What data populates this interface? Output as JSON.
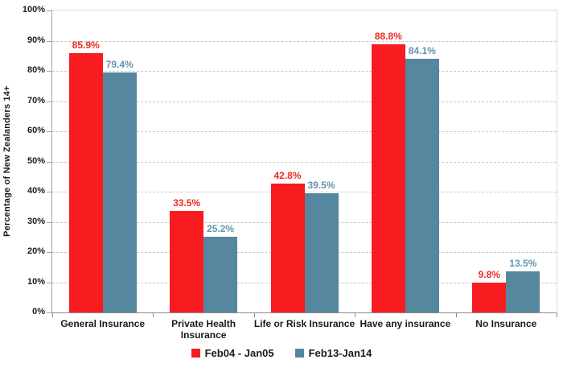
{
  "chart_data": {
    "type": "bar",
    "ylabel": "Percentage of New Zealanders 14+",
    "categories": [
      "General Insurance",
      "Private Health\nInsurance",
      "Life or Risk Insurance",
      "Have any insurance",
      "No Insurance"
    ],
    "series": [
      {
        "name": "Feb04 - Jan05",
        "color": "#f81c20",
        "label_color": "#ef2a24",
        "values": [
          85.9,
          33.5,
          42.8,
          88.8,
          9.8
        ]
      },
      {
        "name": "Feb13-Jan14",
        "color": "#55879f",
        "label_color": "#6296ad",
        "values": [
          79.4,
          25.2,
          39.5,
          84.1,
          13.5
        ]
      }
    ],
    "ylim": [
      0,
      100
    ],
    "ytick_step": 10,
    "ytick_format": "{v}%",
    "value_format": "{v}%",
    "grid": "horizontal-dashed",
    "legend_position": "bottom"
  }
}
